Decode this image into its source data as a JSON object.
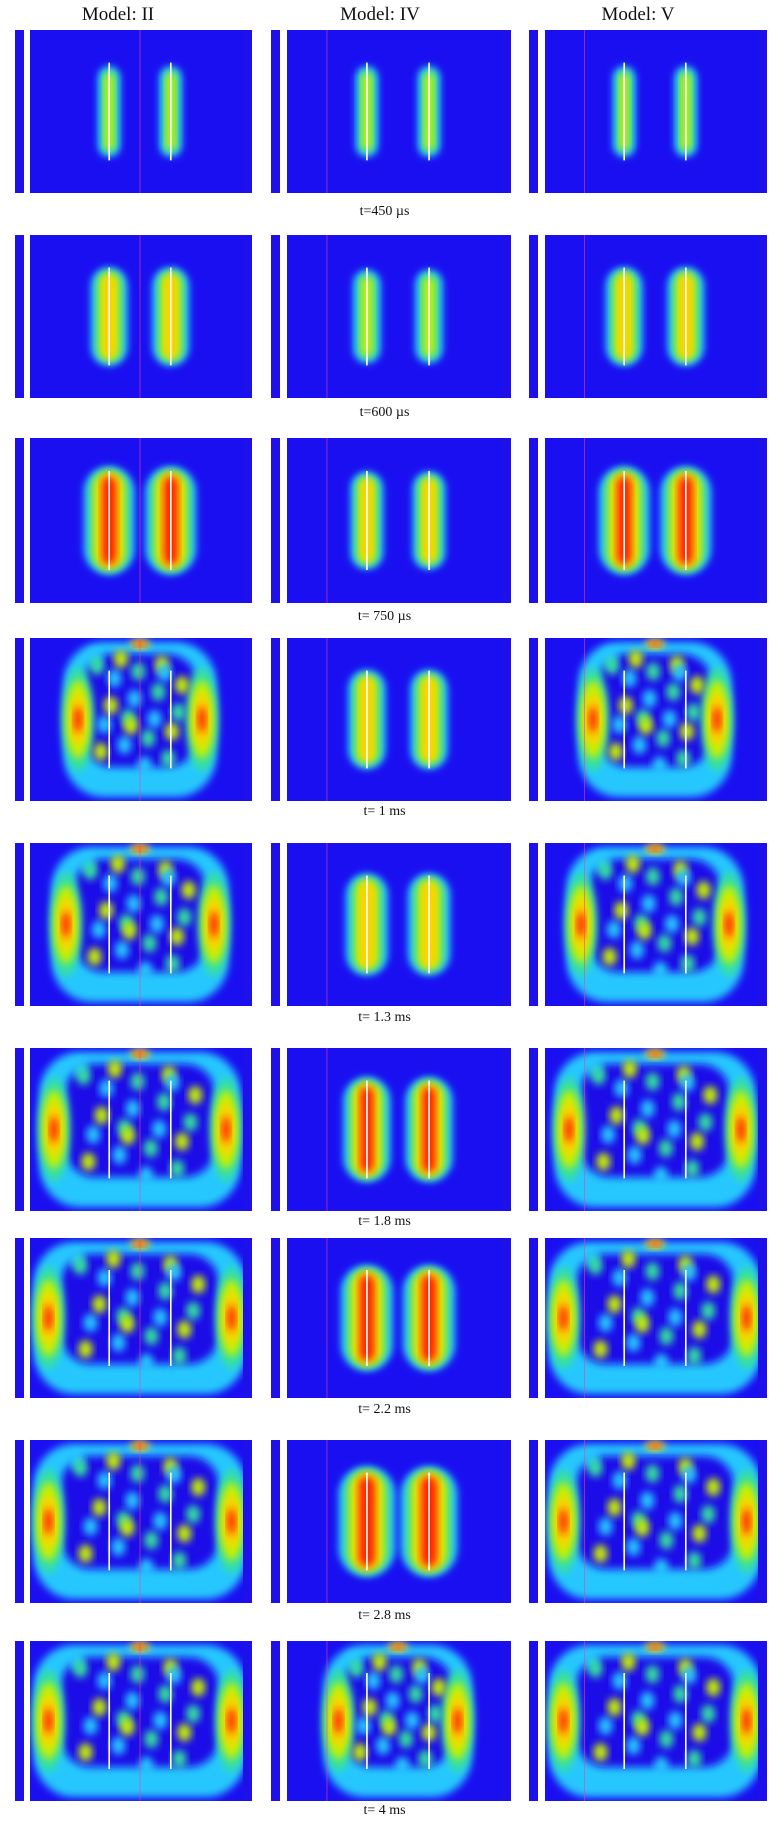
{
  "headers": {
    "model_ii": "Model: II",
    "model_iv": "Model: IV",
    "model_v": "Model: V"
  },
  "time_labels": [
    "t=450 µs",
    "t=600 µs",
    "t= 750 µs",
    "t= 1 ms",
    "t= 1.3 ms",
    "t= 1.8 ms",
    "t= 2.2 ms",
    "t= 2.8 ms",
    "t= 4 ms"
  ],
  "colors": {
    "background_field": "#1a0ff0",
    "low": "#1e10e8",
    "mid_low": "#27c7ff",
    "mid": "#35e0a0",
    "mid_high": "#c8f000",
    "high": "#ffd000",
    "peak": "#ff1c00",
    "borehole": "#ffffff",
    "center_line": "#ff3a9c"
  },
  "models": [
    "II",
    "IV",
    "V"
  ]
}
